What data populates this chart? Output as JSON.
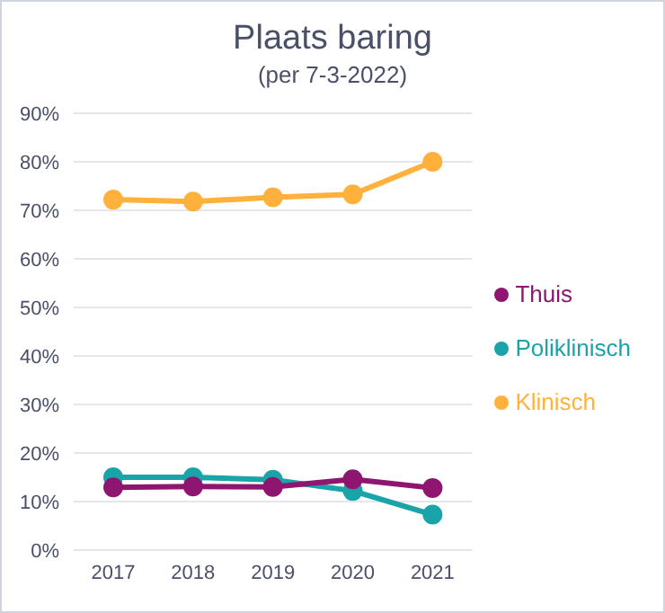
{
  "chart_data": {
    "type": "line",
    "title": "Plaats baring",
    "subtitle": "(per 7-3-2022)",
    "categories": [
      "2017",
      "2018",
      "2019",
      "2020",
      "2021"
    ],
    "series": [
      {
        "name": "Thuis",
        "color": "#8e1670",
        "values": [
          12.9,
          13.1,
          13,
          14.6,
          12.8
        ]
      },
      {
        "name": "Poliklinisch",
        "color": "#1aa3a8",
        "values": [
          15,
          15,
          14.5,
          12.2,
          7.3
        ]
      },
      {
        "name": "Klinisch",
        "color": "#ffb13b",
        "values": [
          72.2,
          71.8,
          72.7,
          73.3,
          80
        ]
      }
    ],
    "ylim": [
      0,
      90
    ],
    "yticks": [
      {
        "value": 0,
        "label": "0%"
      },
      {
        "value": 10,
        "label": "10%"
      },
      {
        "value": 20,
        "label": "20%"
      },
      {
        "value": 30,
        "label": "30%"
      },
      {
        "value": 40,
        "label": "40%"
      },
      {
        "value": 50,
        "label": "50%"
      },
      {
        "value": 60,
        "label": "60%"
      },
      {
        "value": 70,
        "label": "70%"
      },
      {
        "value": 80,
        "label": "80%"
      },
      {
        "value": 90,
        "label": "90%"
      }
    ],
    "grid": "y",
    "legend": "right",
    "marker": "circle"
  }
}
